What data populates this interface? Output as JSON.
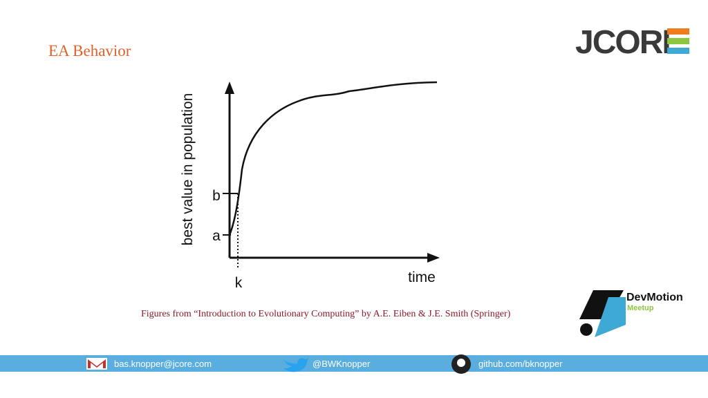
{
  "title": "EA Behavior",
  "logo": {
    "name": "JCORE"
  },
  "figure": {
    "y_label": "best value in population",
    "x_label": "time",
    "tick_a": "a",
    "tick_b": "b",
    "tick_k": "k"
  },
  "caption": "Figures from “Introduction to Evolutionary Computing” by A.E. Eiben & J.E. Smith (Springer)",
  "meetup": {
    "name": "DevMotion",
    "sub": "Meetup"
  },
  "footer": {
    "email": "bas.knopper@jcore.com",
    "twitter": "@BWKnopper",
    "github": "github.com/bknopper"
  }
}
